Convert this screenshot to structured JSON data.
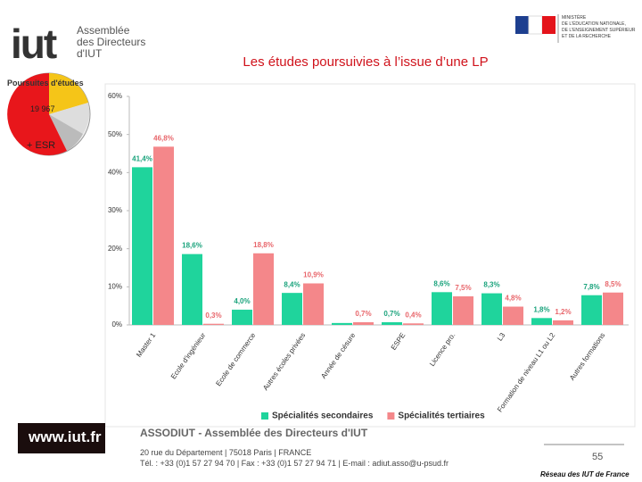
{
  "header": {
    "logo_text": "iut",
    "logo_subtitle": [
      "Assemblée",
      "des Directeurs",
      "d'IUT"
    ],
    "ministry": [
      "MINISTÈRE",
      "DE L'ÉDUCATION NATIONALE,",
      "DE L'ENSEIGNEMENT SUPÉRIEUR",
      "ET DE LA RECHERCHE"
    ]
  },
  "inset": {
    "title": "Poursuites d'études",
    "count": "19 967",
    "note": "+ ESR"
  },
  "chart_data": {
    "type": "bar",
    "title": "Les études poursuivies à l’issue d’une LP",
    "categories": [
      "Master 1",
      "Ecole d'ingénieur",
      "Ecole de commerce",
      "Autres écoles privées",
      "Année de césure",
      "ESPE",
      "Licence pro.",
      "L3",
      "Formation de niveau L1 ou L2",
      "Autres formations"
    ],
    "series": [
      {
        "name": "Spécialités secondaires",
        "color": "#1fd49c",
        "label_color": "#1aa37c",
        "values": [
          41.4,
          18.6,
          4.0,
          8.4,
          0.5,
          0.7,
          8.6,
          8.3,
          1.8,
          7.8
        ],
        "value_labels": [
          "41,4%",
          "18,6%",
          "4,0%",
          "8,4%",
          null,
          "0,7%",
          "8,6%",
          "8,3%",
          "1,8%",
          "7,8%"
        ]
      },
      {
        "name": "Spécialités tertiaires",
        "color": "#f4878a",
        "label_color": "#e8666b",
        "values": [
          46.8,
          0.3,
          18.8,
          10.9,
          0.7,
          0.4,
          7.5,
          4.8,
          1.2,
          8.5
        ],
        "value_labels": [
          "46,8%",
          "0,3%",
          "18,8%",
          "10,9%",
          "0,7%",
          "0,4%",
          "7,5%",
          "4,8%",
          "1,2%",
          "8,5%"
        ]
      }
    ],
    "ylim": [
      0,
      60
    ],
    "yticks": [
      {
        "value": 0,
        "label": "0%"
      },
      {
        "value": 10,
        "label": "10%"
      },
      {
        "value": 20,
        "label": "20%"
      },
      {
        "value": 30,
        "label": "30%"
      },
      {
        "value": 40,
        "label": "40%"
      },
      {
        "value": 50,
        "label": "50%"
      },
      {
        "value": 60,
        "label": "60%"
      }
    ],
    "grid": false,
    "legend": "bottom"
  },
  "footer": {
    "site": "www.iut.fr",
    "org": "ASSODIUT - Assemblée des Directeurs d'IUT",
    "address": "20 rue du Département | 75018 Paris | FRANCE",
    "contact": "Tél. : +33 (0)1 57 27 94 70 | Fax : +33 (0)1 57 27 94 71 | E-mail : adiut.asso@u-psud.fr",
    "page": "55",
    "network": "Réseau des IUT de France"
  }
}
